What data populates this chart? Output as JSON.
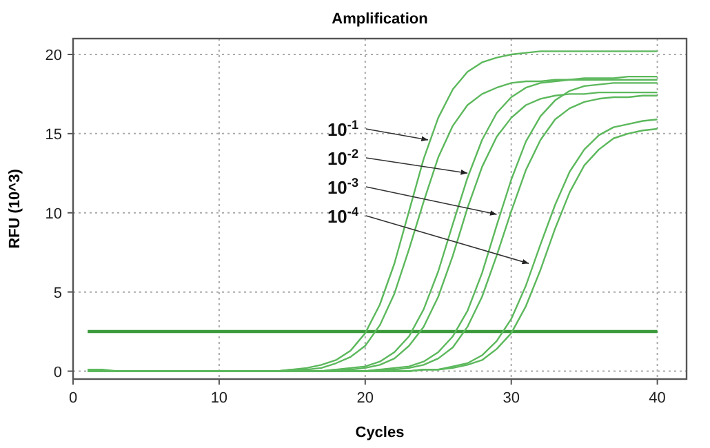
{
  "chart_data": {
    "type": "line",
    "title": "Amplification",
    "xlabel": "Cycles",
    "ylabel": "RFU (10^3)",
    "x": [
      1,
      2,
      3,
      4,
      5,
      6,
      7,
      8,
      9,
      10,
      11,
      12,
      13,
      14,
      15,
      16,
      17,
      18,
      19,
      20,
      21,
      22,
      23,
      24,
      25,
      26,
      27,
      28,
      29,
      30,
      31,
      32,
      33,
      34,
      35,
      36,
      37,
      38,
      39,
      40
    ],
    "series": [
      {
        "color": "#5cb85c",
        "values": [
          0.1,
          0.1,
          0,
          0,
          0,
          0,
          0,
          0,
          0,
          0,
          0,
          0,
          0,
          0,
          0.1,
          0.2,
          0.4,
          0.7,
          1.3,
          2.4,
          4.2,
          6.8,
          10.1,
          13.4,
          16.0,
          17.8,
          18.9,
          19.5,
          19.8,
          20.0,
          20.1,
          20.2,
          20.2,
          20.2,
          20.2,
          20.2,
          20.2,
          20.2,
          20.2,
          20.2
        ]
      },
      {
        "color": "#5cb85c",
        "values": [
          0,
          0,
          0,
          0,
          0,
          0,
          0,
          0,
          0,
          0,
          0,
          0,
          0,
          0,
          0.1,
          0.1,
          0.2,
          0.5,
          0.9,
          1.6,
          2.9,
          4.9,
          7.7,
          10.7,
          13.5,
          15.5,
          16.8,
          17.5,
          17.9,
          18.2,
          18.3,
          18.3,
          18.4,
          18.4,
          18.4,
          18.4,
          18.4,
          18.4,
          18.4,
          18.4
        ]
      },
      {
        "color": "#5cb85c",
        "values": [
          0.1,
          0,
          0,
          0,
          0,
          0,
          0,
          0,
          0,
          0,
          0,
          0,
          0,
          0,
          0,
          0,
          0,
          0.1,
          0.2,
          0.3,
          0.6,
          1.2,
          2.2,
          3.9,
          6.3,
          9.3,
          12.2,
          14.6,
          16.3,
          17.3,
          17.9,
          18.2,
          18.3,
          18.4,
          18.5,
          18.5,
          18.5,
          18.6,
          18.6,
          18.6
        ]
      },
      {
        "color": "#5cb85c",
        "values": [
          0,
          0,
          0,
          0,
          0,
          0,
          0,
          0,
          0,
          0,
          0,
          0,
          0,
          0,
          0,
          0,
          0,
          0.1,
          0.1,
          0.2,
          0.4,
          0.8,
          1.6,
          2.8,
          4.7,
          7.3,
          10.3,
          12.9,
          14.8,
          16.0,
          16.8,
          17.2,
          17.4,
          17.5,
          17.5,
          17.6,
          17.6,
          17.6,
          17.6,
          17.6
        ]
      },
      {
        "color": "#5cb85c",
        "values": [
          0,
          0,
          0,
          0,
          0,
          0,
          0,
          0,
          0,
          0,
          0,
          0,
          0,
          0,
          0,
          0,
          0,
          0,
          0,
          0,
          0.1,
          0.2,
          0.3,
          0.6,
          1.2,
          2.2,
          3.8,
          6.2,
          9.2,
          12.1,
          14.5,
          16.1,
          17.1,
          17.7,
          18.0,
          18.1,
          18.2,
          18.2,
          18.2,
          18.2
        ]
      },
      {
        "color": "#5cb85c",
        "values": [
          0,
          0,
          0,
          0,
          0,
          0,
          0,
          0,
          0,
          0,
          0,
          0,
          0,
          0,
          0,
          0,
          0,
          0,
          0,
          0,
          0.1,
          0.1,
          0.2,
          0.4,
          0.8,
          1.5,
          2.8,
          4.7,
          7.3,
          10.1,
          12.7,
          14.6,
          15.9,
          16.6,
          17.0,
          17.2,
          17.3,
          17.3,
          17.4,
          17.4
        ]
      },
      {
        "color": "#5cb85c",
        "values": [
          0.1,
          0,
          0,
          0,
          0,
          0,
          0,
          0,
          0,
          0,
          0,
          0,
          0,
          0,
          0,
          0,
          0,
          0,
          0,
          0,
          0,
          0,
          0,
          0.1,
          0.1,
          0.3,
          0.5,
          1.0,
          1.9,
          3.3,
          5.4,
          8.0,
          10.5,
          12.6,
          14.0,
          14.9,
          15.4,
          15.6,
          15.8,
          15.9
        ]
      },
      {
        "color": "#5cb85c",
        "values": [
          0,
          0,
          0,
          0,
          0,
          0,
          0,
          0,
          0,
          0,
          0,
          0,
          0,
          0,
          0,
          0,
          0,
          0,
          0,
          0,
          0,
          0,
          0,
          0.1,
          0.1,
          0.2,
          0.4,
          0.7,
          1.4,
          2.4,
          4.1,
          6.4,
          9.0,
          11.3,
          13.0,
          14.0,
          14.7,
          15.0,
          15.2,
          15.3
        ]
      }
    ],
    "ref_lines": [
      {
        "axis": "y",
        "value": 2.5,
        "color": "#3a9a3a"
      }
    ],
    "annotations": [
      {
        "text": "10$^{-1}$",
        "x": 24.3,
        "y": 14.6
      },
      {
        "text": "10$^{-2}$",
        "x": 27.0,
        "y": 12.5
      },
      {
        "text": "10$^{-3}$",
        "x": 29.0,
        "y": 9.9
      },
      {
        "text": "10$^{-4}$",
        "x": 31.2,
        "y": 6.8
      }
    ],
    "xlim": [
      0,
      42
    ],
    "ylim": [
      -0.5,
      21
    ],
    "xticks": [
      0,
      10,
      20,
      30,
      40
    ],
    "yticks": [
      0,
      5,
      10,
      15,
      20
    ],
    "grid": true,
    "line_style": "solid"
  }
}
